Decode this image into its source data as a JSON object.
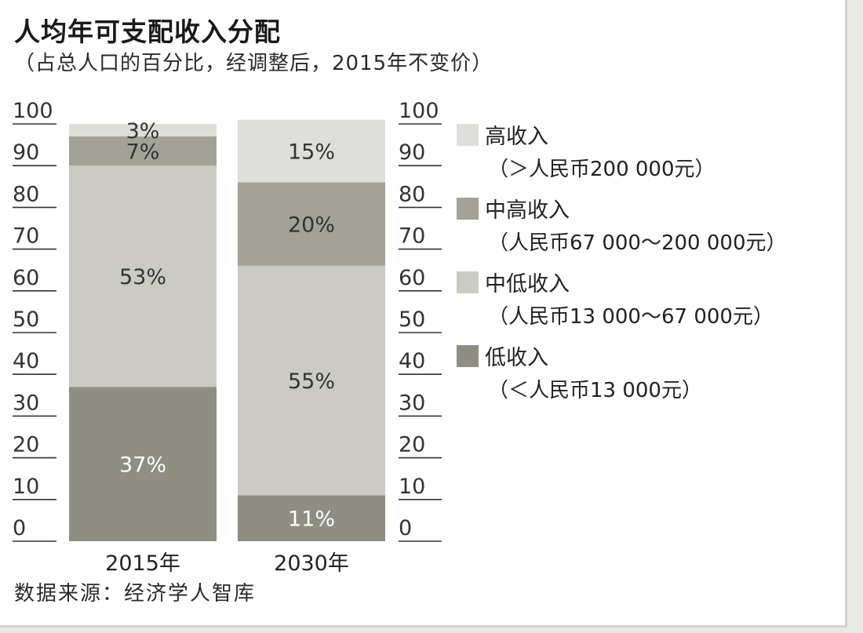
{
  "title": "人均年可支配收入分配",
  "subtitle": "（占总人口的百分比，经调整后，2015年不变价）",
  "source": "数据来源：经济学人智库",
  "chart_data": {
    "type": "bar",
    "stacked": true,
    "categories": [
      "2015年",
      "2030年"
    ],
    "ylim": [
      0,
      100
    ],
    "yticks": [
      0,
      10,
      20,
      30,
      40,
      50,
      60,
      70,
      80,
      90,
      100
    ],
    "grid": false,
    "legend_position": "right",
    "series": [
      {
        "name": "低收入",
        "range": "（＜人民币13 000元）",
        "values": [
          37,
          11
        ],
        "labels": [
          "37%",
          "11%"
        ],
        "color": "#8f8e82",
        "label_color": "#ffffff"
      },
      {
        "name": "中低收入",
        "range": "（人民币13 000～67 000元）",
        "values": [
          53,
          55
        ],
        "labels": [
          "53%",
          "55%"
        ],
        "color": "#cbcbc4",
        "label_color": "#333333"
      },
      {
        "name": "中高收入",
        "range": "（人民币67 000～200 000元）",
        "values": [
          7,
          20
        ],
        "labels": [
          "7%",
          "20%"
        ],
        "color": "#a2a296",
        "label_color": "#333333"
      },
      {
        "name": "高收入",
        "range": "（＞人民币200 000元）",
        "values": [
          3,
          15
        ],
        "labels": [
          "3%",
          "15%"
        ],
        "color": "#dededa",
        "label_color": "#333333"
      }
    ]
  }
}
